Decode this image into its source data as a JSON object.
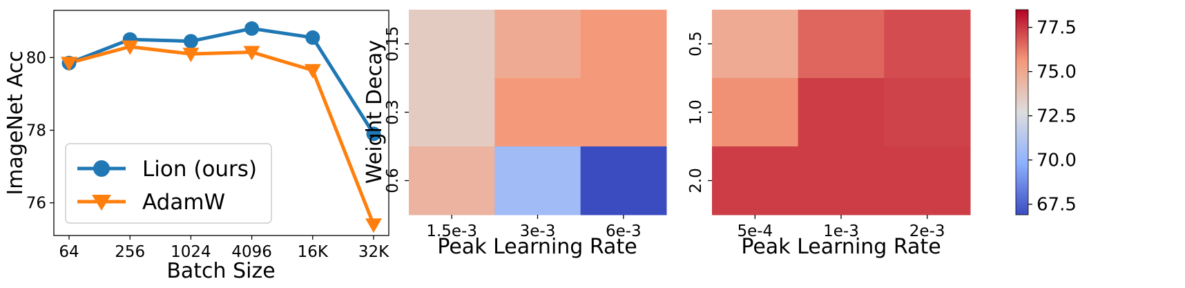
{
  "colors": {
    "lion": "#1f77b4",
    "adamw": "#ff7f0e"
  },
  "chart_data": [
    {
      "type": "line",
      "title": "",
      "xlabel": "Batch Size",
      "ylabel": "ImageNet Acc",
      "categories": [
        "64",
        "256",
        "1024",
        "4096",
        "16K",
        "32K"
      ],
      "yticks": [
        "76",
        "78",
        "80"
      ],
      "ylim": [
        75.1,
        81.3
      ],
      "legend": "lower-left",
      "grid": false,
      "series": [
        {
          "name": "Lion (ours)",
          "marker": "circle",
          "values": [
            79.85,
            80.5,
            80.45,
            80.8,
            80.55,
            77.9
          ]
        },
        {
          "name": "AdamW",
          "marker": "triangle-down",
          "values": [
            79.85,
            80.3,
            80.1,
            80.15,
            79.65,
            75.4
          ]
        }
      ]
    },
    {
      "type": "heatmap",
      "title": "",
      "xlabel": "Peak Learning Rate",
      "ylabel": "Weight Decay",
      "x": [
        "1.5e-3",
        "3e-3",
        "6e-3"
      ],
      "y": [
        "0.15",
        "0.3",
        "0.6"
      ],
      "values": [
        [
          73.5,
          74.9,
          75.6
        ],
        [
          73.5,
          75.6,
          75.6
        ],
        [
          74.5,
          70.5,
          66.9
        ]
      ]
    },
    {
      "type": "heatmap",
      "title": "",
      "xlabel": "Peak Learning Rate",
      "ylabel": "",
      "x": [
        "5e-4",
        "1e-3",
        "2e-3"
      ],
      "y": [
        "0.5",
        "1.0",
        "2.0"
      ],
      "values": [
        [
          74.9,
          76.6,
          77.1
        ],
        [
          75.8,
          77.4,
          77.3
        ],
        [
          77.4,
          77.4,
          77.4
        ]
      ]
    }
  ],
  "colorbar": {
    "range": [
      66.9,
      78.5
    ],
    "ticks": [
      "67.5",
      "70.0",
      "72.5",
      "75.0",
      "77.5"
    ],
    "colormap": "coolwarm"
  }
}
